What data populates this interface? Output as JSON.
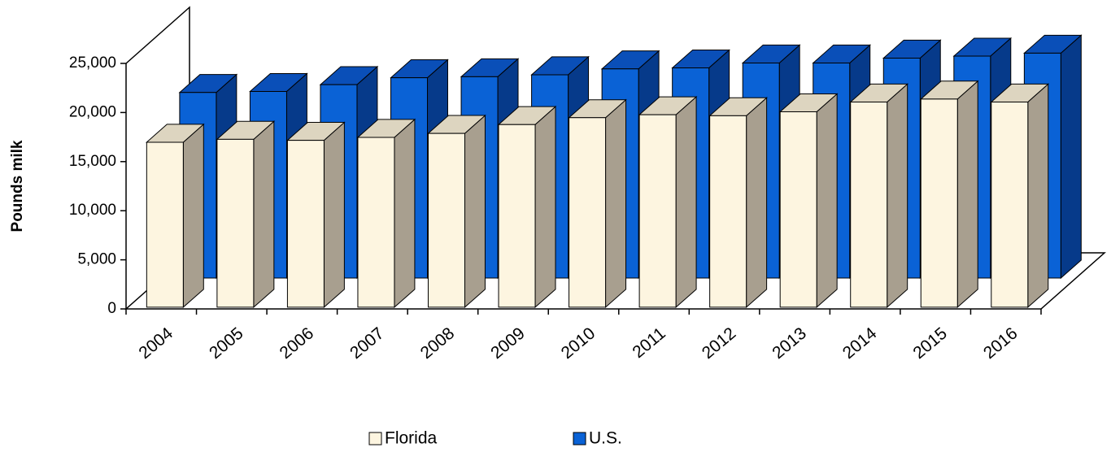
{
  "chart_data": {
    "type": "bar3d",
    "y_label": "Pounds milk",
    "categories": [
      "2004",
      "2005",
      "2006",
      "2007",
      "2008",
      "2009",
      "2010",
      "2011",
      "2012",
      "2013",
      "2014",
      "2015",
      "2016"
    ],
    "series": [
      {
        "name": "Florida",
        "color": "#fdf5e0",
        "values": [
          16800,
          17100,
          17000,
          17300,
          17700,
          18600,
          19300,
          19600,
          19500,
          19900,
          20900,
          21200,
          20900
        ]
      },
      {
        "name": "U.S.",
        "color": "#0a62d6",
        "values": [
          18900,
          19000,
          19700,
          20400,
          20500,
          20700,
          21300,
          21400,
          21900,
          21900,
          22400,
          22600,
          22900
        ]
      }
    ],
    "ylim": [
      0,
      25000
    ],
    "yticks": [
      0,
      {
        "value": 5000,
        "label": "5,000"
      },
      {
        "value": 10000,
        "label": "10,000"
      },
      {
        "value": 15000,
        "label": "15,000"
      },
      {
        "value": 20000,
        "label": "20,000"
      },
      {
        "value": 25000,
        "label": "25,000"
      }
    ],
    "legend": "bottom"
  }
}
